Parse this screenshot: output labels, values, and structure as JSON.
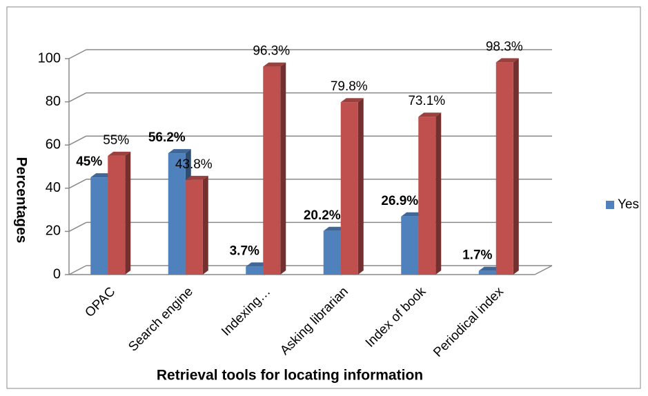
{
  "chart_data": {
    "type": "bar3d",
    "x_label": "Retrieval tools for locating information",
    "y_label": "Percentages",
    "categories": [
      "OPAC",
      "Search engine",
      "Indexing…",
      "Asking librarian",
      "Index of book",
      "Periodical index"
    ],
    "series": [
      {
        "name": "Yes",
        "color": "#4f81bd",
        "values": [
          45,
          56.2,
          3.7,
          20.2,
          26.9,
          1.7
        ],
        "value_labels": [
          "45%",
          "56.2%",
          "3.7%",
          "20.2%",
          "26.9%",
          "1.7%"
        ]
      },
      {
        "color": "#c0504d",
        "values": [
          55,
          43.8,
          96.3,
          79.8,
          73.1,
          98.3
        ],
        "value_labels": [
          "55%",
          "43.8%",
          "96.3%",
          "79.8%",
          "73.1%",
          "98.3%"
        ]
      }
    ],
    "ylim": [
      0,
      100
    ],
    "yticks": [
      0,
      20,
      40,
      60,
      80,
      100
    ],
    "grid": true,
    "legend": "right"
  }
}
